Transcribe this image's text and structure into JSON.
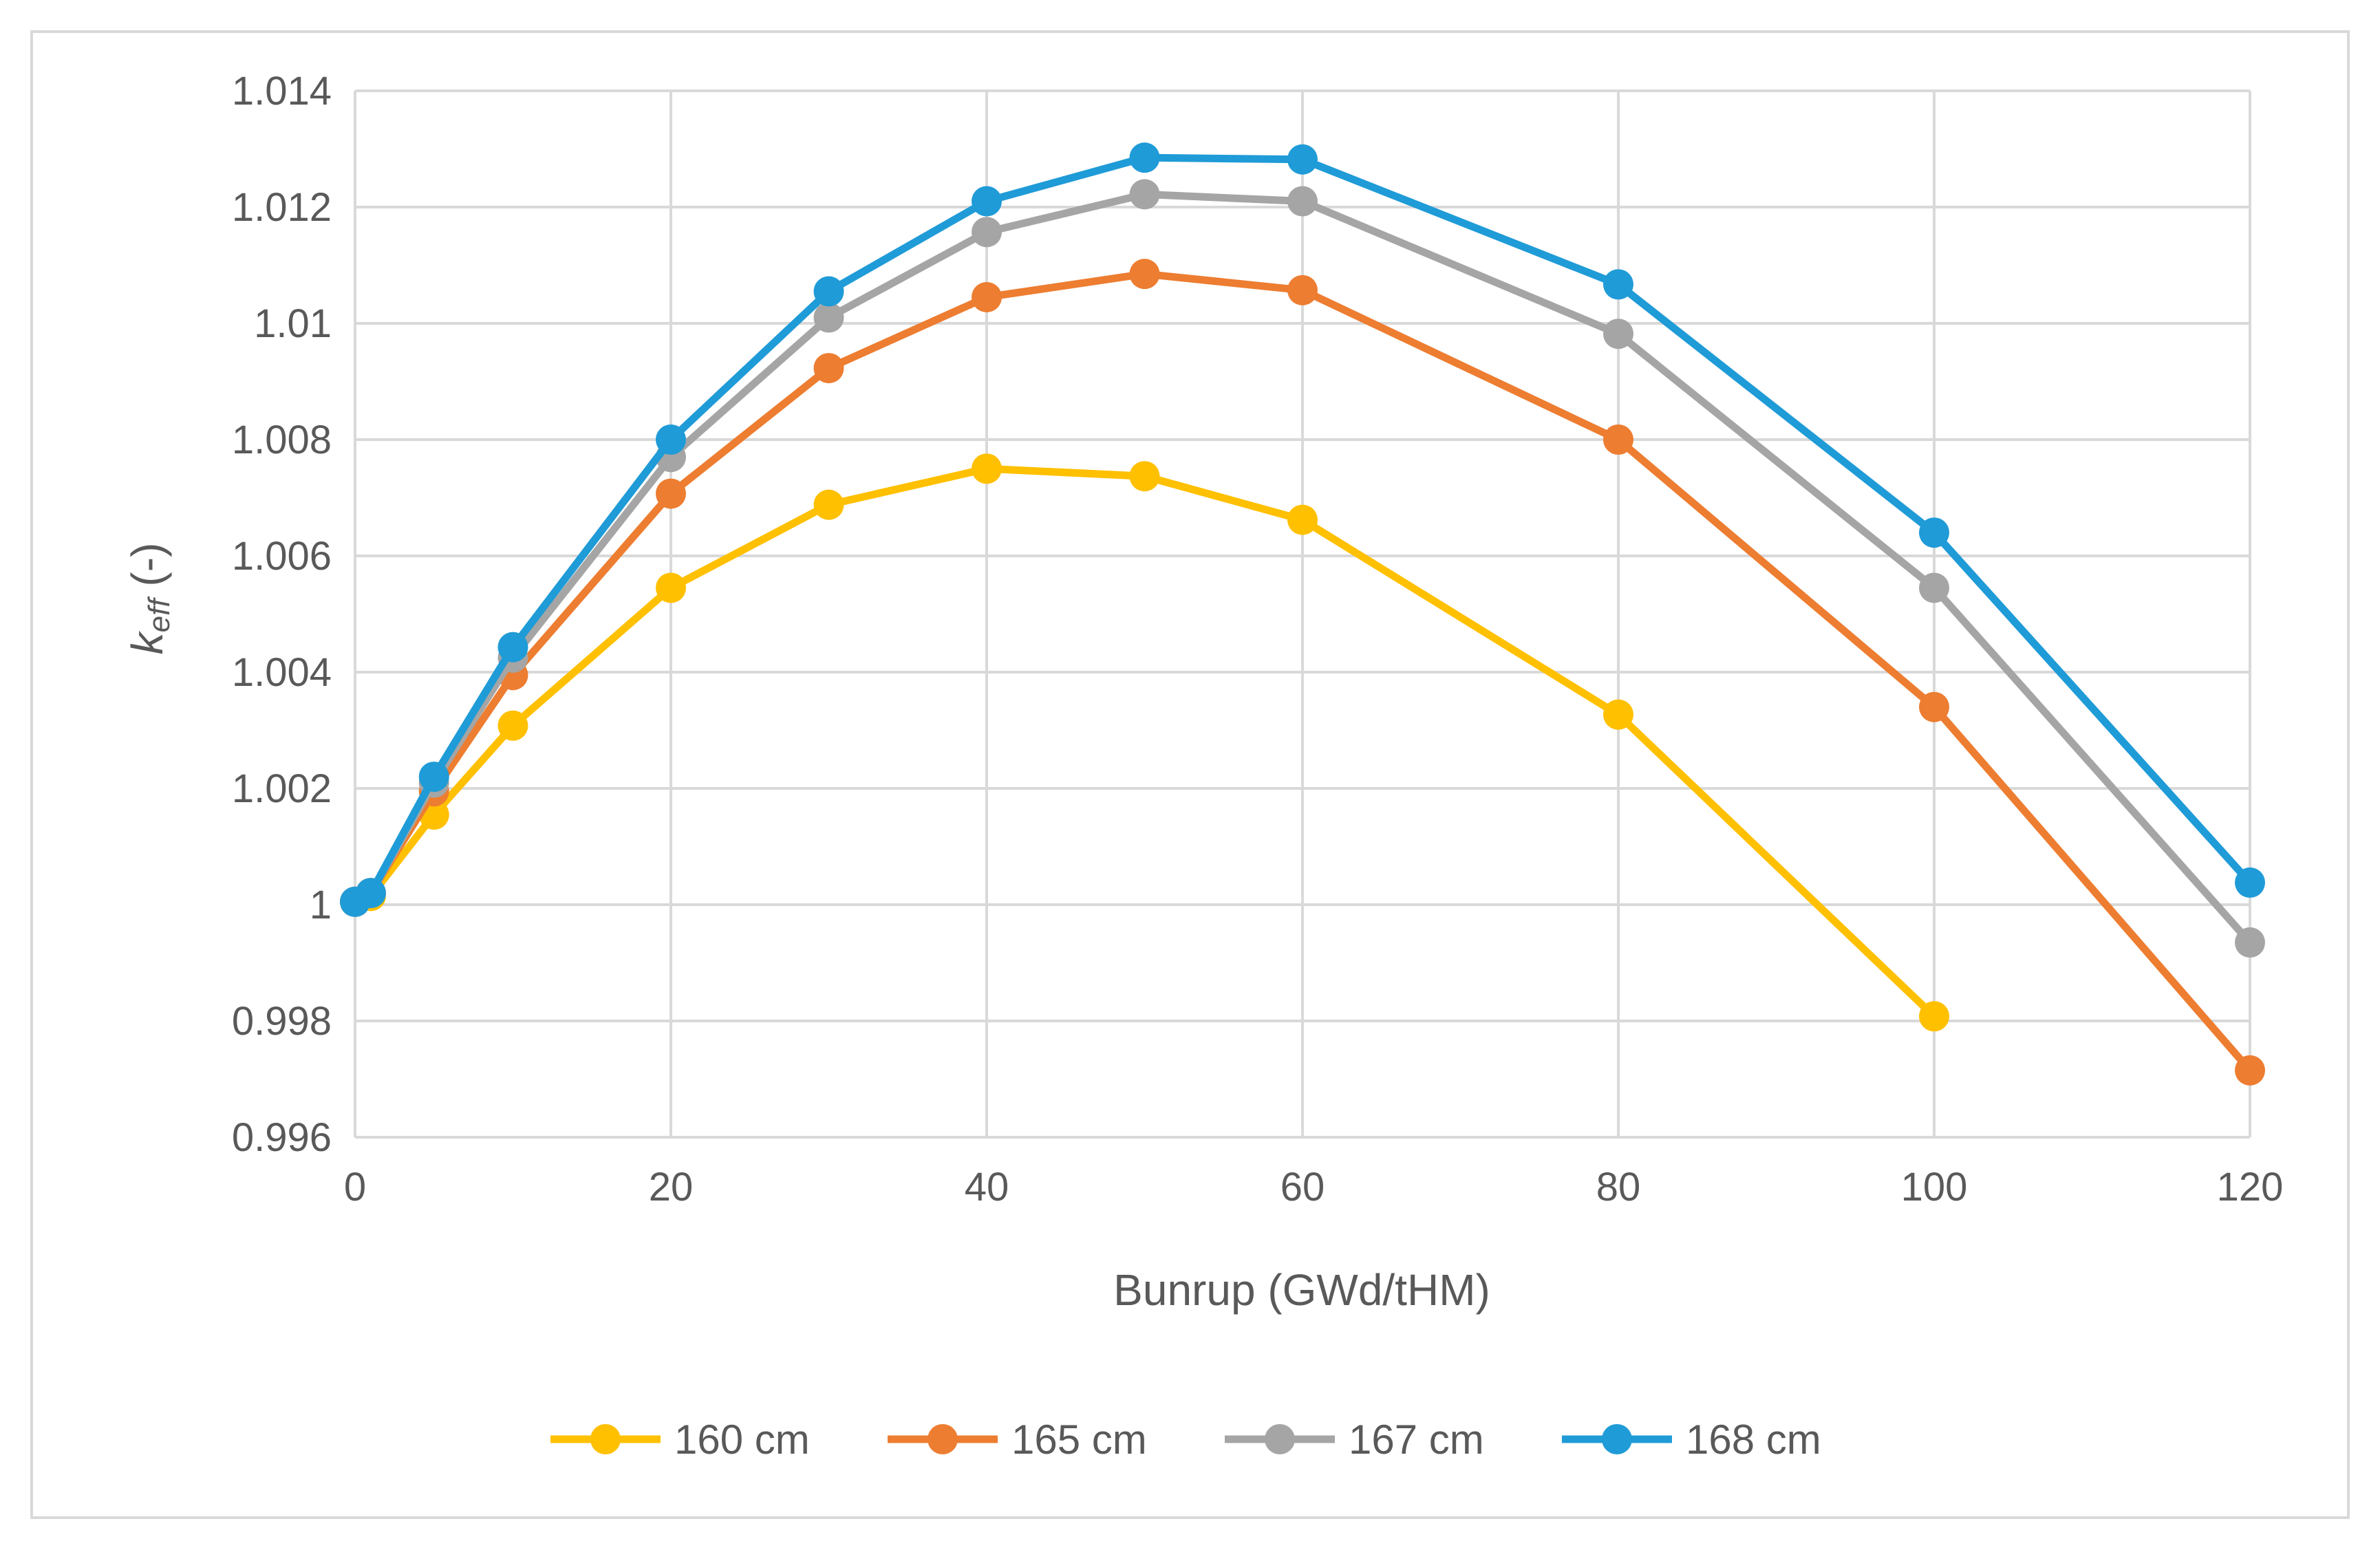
{
  "chart_data": {
    "type": "line",
    "title": "",
    "xlabel": "Bunrup (GWd/tHM)",
    "ylabel_main": "k",
    "ylabel_sub": "eff",
    "ylabel_suffix": " (-)",
    "xlim": [
      0,
      120
    ],
    "ylim": [
      0.996,
      1.014
    ],
    "xticks": [
      0,
      20,
      40,
      60,
      80,
      100,
      120
    ],
    "xtick_labels": [
      "0",
      "20",
      "40",
      "60",
      "80",
      "100",
      "120"
    ],
    "yticks": [
      0.996,
      0.998,
      1.0,
      1.002,
      1.004,
      1.006,
      1.008,
      1.01,
      1.012,
      1.014
    ],
    "ytick_labels": [
      "0.996",
      "0.998",
      "1",
      "1.002",
      "1.004",
      "1.006",
      "1.008",
      "1.01",
      "1.012",
      "1.014"
    ],
    "grid": true,
    "legend_position": "bottom",
    "series": [
      {
        "name": "160 cm",
        "color": "#FFC000",
        "x": [
          0,
          1,
          5,
          10,
          20,
          30,
          40,
          50,
          60,
          80,
          100
        ],
        "values": [
          1.00005,
          1.00015,
          1.00155,
          1.00308,
          1.00545,
          1.00688,
          1.0075,
          1.00737,
          1.00662,
          1.00327,
          0.99808
        ]
      },
      {
        "name": "165 cm",
        "color": "#ED7D31",
        "x": [
          0,
          1,
          5,
          10,
          20,
          30,
          40,
          50,
          60,
          80,
          100,
          120
        ],
        "values": [
          1.00005,
          1.0002,
          1.00195,
          1.00395,
          1.00707,
          1.00923,
          1.01045,
          1.01085,
          1.01057,
          1.008,
          1.0034,
          0.99715
        ]
      },
      {
        "name": "167 cm",
        "color": "#A5A5A5",
        "x": [
          0,
          1,
          5,
          10,
          20,
          30,
          40,
          50,
          60,
          80,
          100,
          120
        ],
        "values": [
          1.00005,
          1.0002,
          1.0021,
          1.00425,
          1.0077,
          1.0101,
          1.01157,
          1.01222,
          1.0121,
          1.00982,
          1.00545,
          0.99935
        ]
      },
      {
        "name": "168 cm",
        "color": "#1F9BD7",
        "x": [
          0,
          1,
          5,
          10,
          20,
          30,
          40,
          50,
          60,
          80,
          100,
          120
        ],
        "values": [
          1.00005,
          1.0002,
          1.0022,
          1.00443,
          1.008,
          1.01055,
          1.0121,
          1.01285,
          1.01282,
          1.01067,
          1.0064,
          1.00038
        ]
      }
    ]
  }
}
